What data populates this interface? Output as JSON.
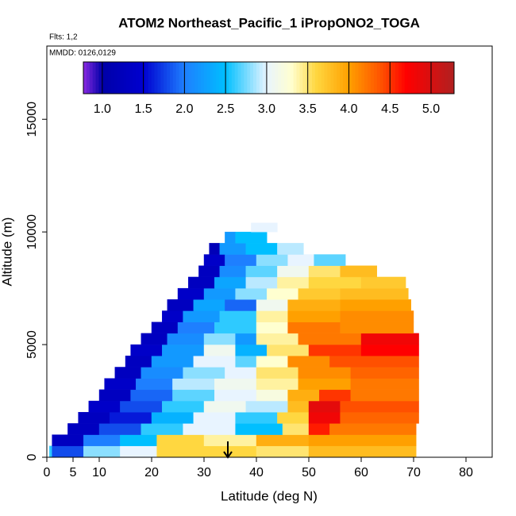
{
  "chart_data": {
    "type": "curtain",
    "title": "ATOM2 Northeast_Pacific_1 iPropONO2_TOGA",
    "flights": "Flts: 1,2",
    "dates": "MMDD: 0126,0129",
    "xlabel": "Latitude (deg N)",
    "ylabel": "Altitude (m)",
    "xlim": [
      0,
      85
    ],
    "xticks": [
      0,
      5,
      10,
      20,
      30,
      40,
      50,
      60,
      70,
      80
    ],
    "ylim": [
      0,
      18250
    ],
    "yticks": [
      0,
      5000,
      10000,
      15000
    ],
    "clim": [
      0.77,
      5.28
    ],
    "cticks": [
      {
        "value": 1,
        "label": "1.0"
      },
      {
        "value": 1.5,
        "label": "1.5"
      },
      {
        "value": 2,
        "label": "2.0"
      },
      {
        "value": 2.5,
        "label": "2.5"
      },
      {
        "value": 3,
        "label": "3.0"
      },
      {
        "value": 3.5,
        "label": "3.5"
      },
      {
        "value": 4,
        "label": "4.0"
      },
      {
        "value": 4.5,
        "label": "4.5"
      },
      {
        "value": 5,
        "label": "5.0"
      }
    ],
    "colorscale": [
      [
        0.77,
        "#8a2be2"
      ],
      [
        1.0,
        "#0000a8"
      ],
      [
        1.5,
        "#0000d0"
      ],
      [
        2.0,
        "#1e7fff"
      ],
      [
        2.5,
        "#00bfff"
      ],
      [
        3.0,
        "#e8f4ff"
      ],
      [
        3.3,
        "#ffffd0"
      ],
      [
        3.6,
        "#ffd740"
      ],
      [
        4.0,
        "#ffa000"
      ],
      [
        4.4,
        "#ff5000"
      ],
      [
        4.7,
        "#ff0000"
      ],
      [
        5.28,
        "#b02020"
      ]
    ],
    "rows": [
      {
        "alt": [
          0,
          500
        ],
        "edges": [
          0.5,
          1,
          7,
          14,
          21,
          40,
          50,
          70.5
        ],
        "values": [
          2.6,
          1.8,
          2.8,
          3.0,
          3.6,
          3.5,
          3.8
        ]
      },
      {
        "alt": [
          500,
          1000
        ],
        "edges": [
          1,
          7,
          14,
          21,
          30,
          40,
          50,
          70.5
        ],
        "values": [
          1.3,
          2.0,
          2.5,
          3.6,
          3.4,
          3.9,
          4.0
        ]
      },
      {
        "alt": [
          1000,
          1500
        ],
        "edges": [
          4,
          10,
          18,
          26,
          36,
          45,
          50,
          54,
          70.5
        ],
        "values": [
          1.3,
          1.8,
          2.6,
          3.0,
          2.5,
          3.5,
          4.6,
          4.2
        ]
      },
      {
        "alt": [
          1500,
          2000
        ],
        "edges": [
          6,
          12,
          20,
          28,
          36,
          44,
          50,
          56,
          71
        ],
        "values": [
          1.3,
          1.6,
          2.4,
          3.0,
          2.6,
          3.6,
          4.8,
          4.3
        ]
      },
      {
        "alt": [
          2000,
          2500
        ],
        "edges": [
          8,
          14,
          22,
          30,
          38,
          46,
          50,
          56,
          71
        ],
        "values": [
          1.4,
          1.8,
          2.6,
          3.1,
          2.9,
          3.8,
          4.9,
          4.4
        ]
      },
      {
        "alt": [
          2500,
          3000
        ],
        "edges": [
          10,
          16,
          24,
          32,
          40,
          46,
          52,
          58,
          71
        ],
        "values": [
          1.3,
          1.9,
          2.7,
          3.0,
          3.2,
          3.9,
          4.5,
          4.2
        ]
      },
      {
        "alt": [
          3000,
          3500
        ],
        "edges": [
          11,
          17,
          24,
          32,
          40,
          48,
          58,
          71
        ],
        "values": [
          1.4,
          2.0,
          2.9,
          3.1,
          3.4,
          4.0,
          4.2
        ]
      },
      {
        "alt": [
          3500,
          4000
        ],
        "edges": [
          13,
          18,
          26,
          34,
          40,
          48,
          58,
          71
        ],
        "values": [
          1.3,
          2.1,
          2.8,
          3.0,
          3.5,
          4.1,
          4.3
        ]
      },
      {
        "alt": [
          4000,
          4500
        ],
        "edges": [
          15,
          20,
          28,
          36,
          40,
          46,
          54,
          71
        ],
        "values": [
          1.3,
          2.2,
          3.0,
          2.7,
          3.3,
          4.1,
          4.4
        ]
      },
      {
        "alt": [
          4500,
          5000
        ],
        "edges": [
          16,
          22,
          30,
          36,
          42,
          50,
          60,
          71
        ],
        "values": [
          1.4,
          2.2,
          3.1,
          2.4,
          3.5,
          4.5,
          4.7
        ]
      },
      {
        "alt": [
          5000,
          5500
        ],
        "edges": [
          18,
          23,
          30,
          36,
          40,
          48,
          60,
          71
        ],
        "values": [
          1.3,
          2.1,
          2.8,
          2.2,
          3.4,
          4.2,
          4.8
        ]
      },
      {
        "alt": [
          5500,
          6000
        ],
        "edges": [
          20,
          25,
          32,
          40,
          46,
          56,
          70
        ],
        "values": [
          1.3,
          2.0,
          2.6,
          3.3,
          4.2,
          4.1
        ]
      },
      {
        "alt": [
          6000,
          6500
        ],
        "edges": [
          22,
          26,
          33,
          40,
          46,
          56,
          70
        ],
        "values": [
          1.4,
          2.2,
          2.6,
          3.4,
          4.0,
          4.1
        ]
      },
      {
        "alt": [
          6500,
          7000
        ],
        "edges": [
          23,
          28,
          34,
          40,
          46,
          56,
          69.5
        ],
        "values": [
          1.3,
          2.3,
          1.9,
          3.1,
          3.9,
          4.0
        ]
      },
      {
        "alt": [
          7000,
          7500
        ],
        "edges": [
          25,
          30,
          36,
          42,
          48,
          56,
          69
        ],
        "values": [
          1.4,
          2.2,
          2.8,
          3.3,
          3.7,
          3.8
        ]
      },
      {
        "alt": [
          7500,
          8000
        ],
        "edges": [
          27,
          32,
          38,
          44,
          50,
          60,
          68.5
        ],
        "values": [
          1.3,
          2.3,
          2.9,
          3.4,
          3.6,
          3.7
        ]
      },
      {
        "alt": [
          8000,
          8500
        ],
        "edges": [
          29,
          33,
          38,
          44,
          50,
          56,
          63
        ],
        "values": [
          1.3,
          2.1,
          2.7,
          3.1,
          3.5,
          3.8
        ]
      },
      {
        "alt": [
          8500,
          9000
        ],
        "edges": [
          30,
          34,
          40,
          46,
          51,
          57
        ],
        "values": [
          1.4,
          2.0,
          2.8,
          3.0,
          2.7
        ]
      },
      {
        "alt": [
          9000,
          9500
        ],
        "edges": [
          31,
          33,
          38,
          44,
          49
        ],
        "values": [
          1.2,
          2.2,
          2.5,
          2.9
        ]
      },
      {
        "alt": [
          9500,
          10000
        ],
        "edges": [
          34,
          36,
          42
        ],
        "values": [
          2.2,
          2.5
        ]
      },
      {
        "alt": [
          10000,
          10400
        ],
        "edges": [
          39,
          44
        ],
        "values": [
          3.0
        ]
      }
    ]
  }
}
